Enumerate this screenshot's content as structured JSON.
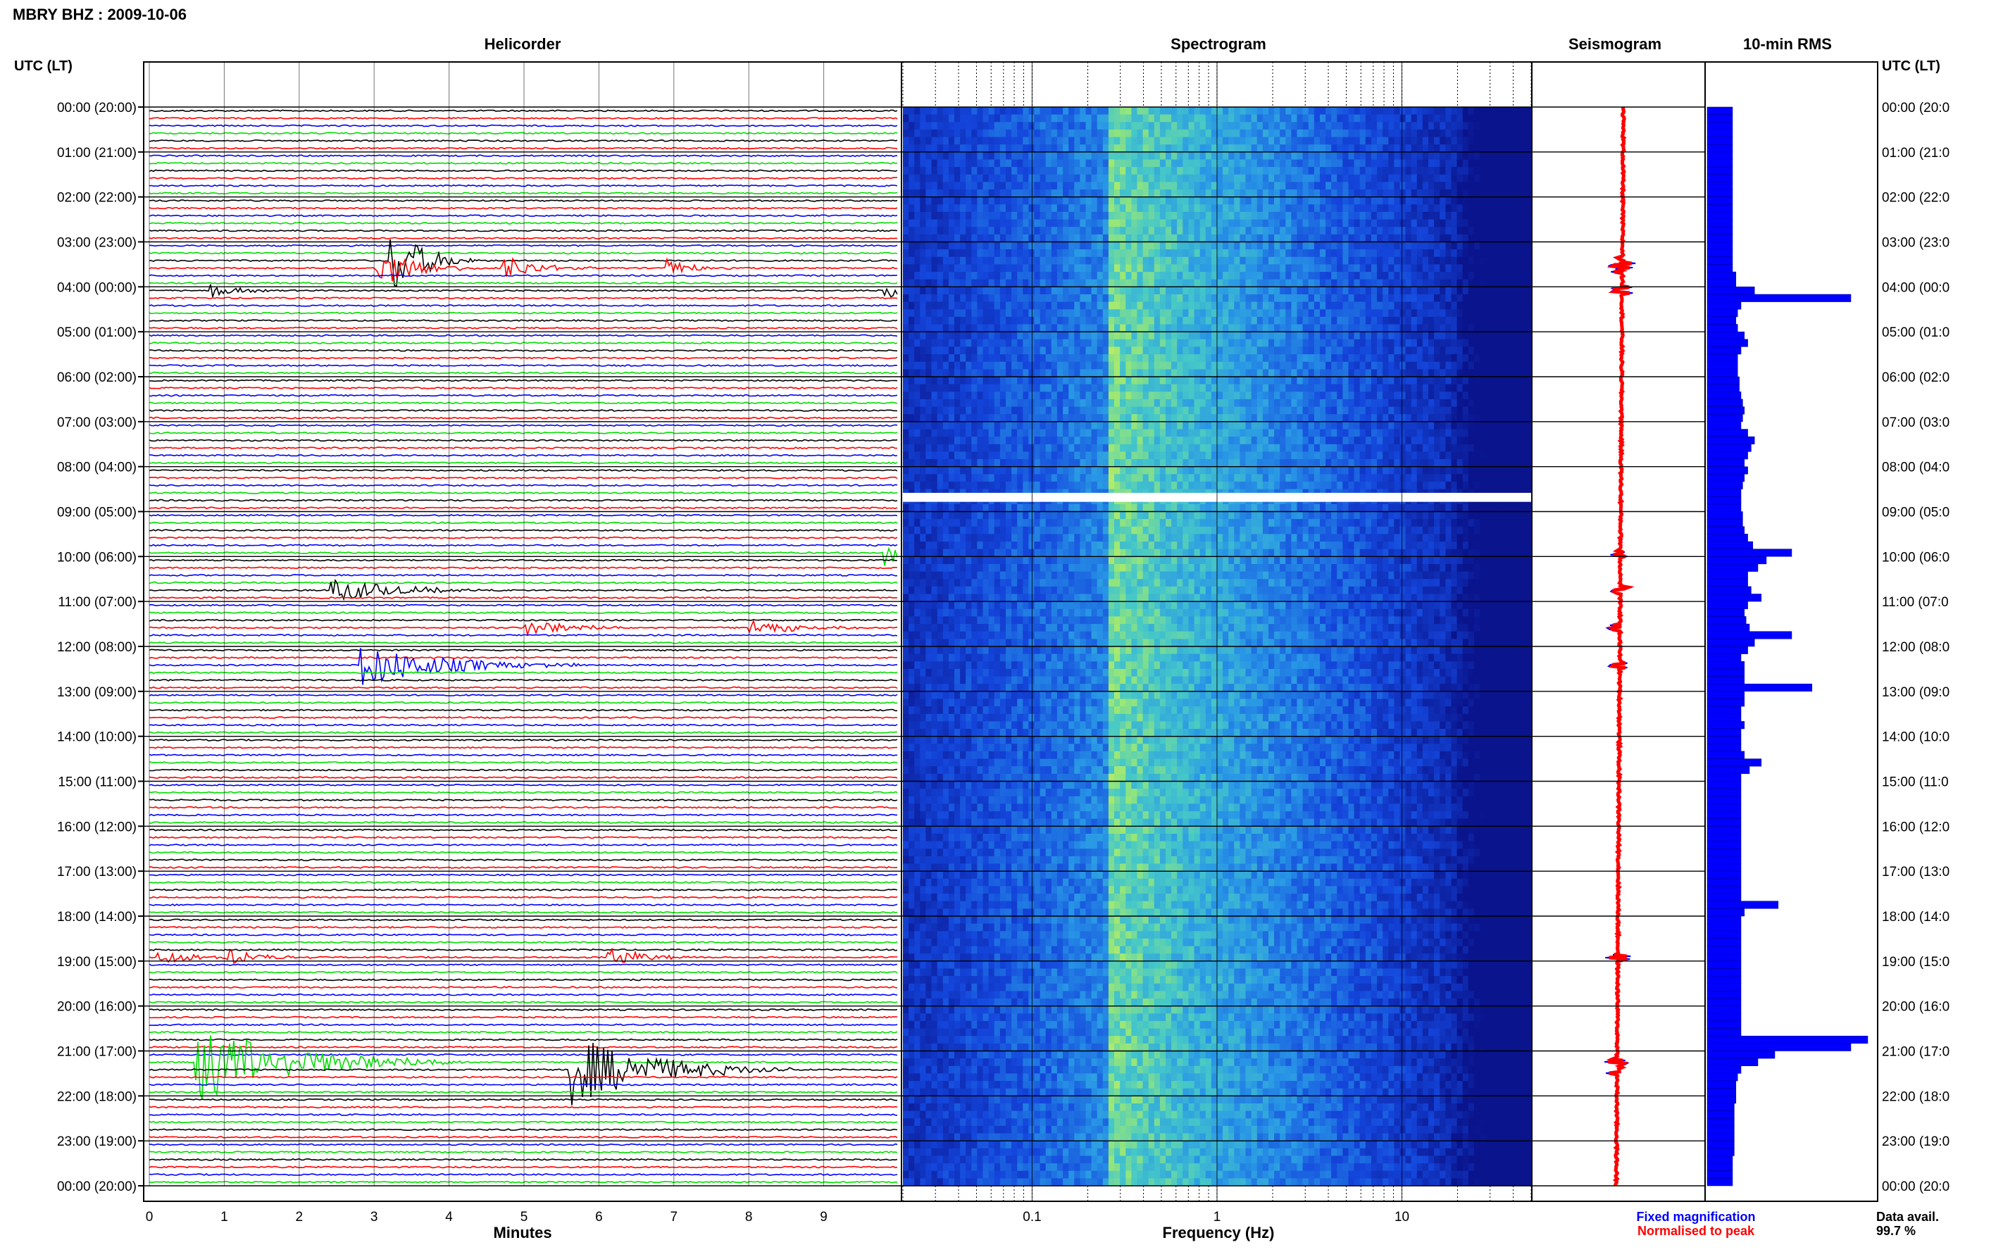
{
  "header": {
    "title": "MBRY BHZ : 2009-10-06"
  },
  "panels": {
    "helicorder": "Helicorder",
    "spectrogram": "Spectrogram",
    "seismogram": "Seismogram",
    "rms": "10-min RMS"
  },
  "axes": {
    "left_label": "UTC (LT)",
    "right_label": "UTC (LT)",
    "x_label_minutes": "Minutes",
    "x_label_frequency": "Frequency (Hz)",
    "minute_ticks": [
      "0",
      "1",
      "2",
      "3",
      "4",
      "5",
      "6",
      "7",
      "8",
      "9"
    ],
    "freq_ticks": [
      "0.1",
      "1",
      "10"
    ]
  },
  "time_labels": [
    "00:00 (20:00)",
    "01:00 (21:00)",
    "02:00 (22:00)",
    "03:00 (23:00)",
    "04:00 (00:00)",
    "05:00 (01:00)",
    "06:00 (02:00)",
    "07:00 (03:00)",
    "08:00 (04:00)",
    "09:00 (05:00)",
    "10:00 (06:00)",
    "11:00 (07:00)",
    "12:00 (08:00)",
    "13:00 (09:00)",
    "14:00 (10:00)",
    "15:00 (11:00)",
    "16:00 (12:00)",
    "17:00 (13:00)",
    "18:00 (14:00)",
    "19:00 (15:00)",
    "20:00 (16:00)",
    "21:00 (17:00)",
    "22:00 (18:00)",
    "23:00 (19:00)",
    "00:00 (20:00)"
  ],
  "time_labels_right": [
    "00:00 (20:0",
    "01:00 (21:0",
    "02:00 (22:0",
    "03:00 (23:0",
    "04:00 (00:0",
    "05:00 (01:0",
    "06:00 (02:0",
    "07:00 (03:0",
    "08:00 (04:0",
    "09:00 (05:0",
    "10:00 (06:0",
    "11:00 (07:0",
    "12:00 (08:0",
    "13:00 (09:0",
    "14:00 (10:0",
    "15:00 (11:0",
    "16:00 (12:0",
    "17:00 (13:0",
    "18:00 (14:0",
    "19:00 (15:0",
    "20:00 (16:0",
    "21:00 (17:0",
    "22:00 (18:0",
    "23:00 (19:0",
    "00:00 (20:0"
  ],
  "legend": {
    "fixed": "Fixed magnification",
    "normalised": "Normalised to peak",
    "avail_label": "Data avail.",
    "avail_value": "99.7 %"
  },
  "colors": {
    "trace_cycle": [
      "#000000",
      "#ff0000",
      "#0000ff",
      "#00dd00"
    ],
    "rms_bar": "#0000ff",
    "fixed": "#0000ff",
    "normalised": "#ff0000"
  },
  "chart_data": {
    "type": "heatmap",
    "helicorder": {
      "x_unit": "Minutes",
      "xlim": [
        0,
        10
      ],
      "rows_per_hour": 6,
      "hours": 24,
      "events": [
        {
          "row": 20,
          "minute": 3.2,
          "amp": 1.0,
          "dur": 0.4
        },
        {
          "row": 21,
          "minute": 3.0,
          "amp": 0.5,
          "dur": 0.5
        },
        {
          "row": 21,
          "minute": 4.7,
          "amp": 0.35,
          "dur": 0.4
        },
        {
          "row": 21,
          "minute": 6.9,
          "amp": 0.25,
          "dur": 0.3
        },
        {
          "row": 24,
          "minute": 0.8,
          "amp": 0.2,
          "dur": 0.3
        },
        {
          "row": 24,
          "minute": 9.8,
          "amp": 0.2,
          "dur": 0.4
        },
        {
          "row": 59,
          "minute": 9.8,
          "amp": 0.4,
          "dur": 0.3
        },
        {
          "row": 64,
          "minute": 2.4,
          "amp": 0.3,
          "dur": 0.8
        },
        {
          "row": 69,
          "minute": 5.0,
          "amp": 0.2,
          "dur": 0.6
        },
        {
          "row": 69,
          "minute": 8.0,
          "amp": 0.2,
          "dur": 0.6
        },
        {
          "row": 74,
          "minute": 2.8,
          "amp": 0.55,
          "dur": 1.0
        },
        {
          "row": 113,
          "minute": 0.1,
          "amp": 0.25,
          "dur": 0.4
        },
        {
          "row": 113,
          "minute": 1.0,
          "amp": 0.25,
          "dur": 0.4
        },
        {
          "row": 113,
          "minute": 6.1,
          "amp": 0.3,
          "dur": 0.4
        },
        {
          "row": 127,
          "minute": 0.6,
          "amp": 1.0,
          "dur": 1.2
        },
        {
          "row": 128,
          "minute": 5.6,
          "amp": 0.9,
          "dur": 1.0
        }
      ]
    },
    "spectrogram": {
      "x_unit": "Frequency (Hz)",
      "xlim": [
        0.02,
        50
      ],
      "log_x": true,
      "peak_frequency_hz": 0.25
    },
    "rms": {
      "unit": "relative",
      "values": [
        0.15,
        0.15,
        0.15,
        0.15,
        0.15,
        0.15,
        0.15,
        0.15,
        0.15,
        0.15,
        0.15,
        0.15,
        0.15,
        0.15,
        0.15,
        0.15,
        0.15,
        0.15,
        0.15,
        0.15,
        0.15,
        0.15,
        0.17,
        0.17,
        0.28,
        0.85,
        0.2,
        0.18,
        0.17,
        0.18,
        0.22,
        0.24,
        0.2,
        0.18,
        0.18,
        0.18,
        0.19,
        0.19,
        0.2,
        0.21,
        0.22,
        0.21,
        0.2,
        0.24,
        0.28,
        0.26,
        0.24,
        0.22,
        0.24,
        0.22,
        0.21,
        0.2,
        0.2,
        0.2,
        0.21,
        0.21,
        0.22,
        0.24,
        0.27,
        0.5,
        0.35,
        0.3,
        0.24,
        0.24,
        0.26,
        0.32,
        0.24,
        0.22,
        0.23,
        0.25,
        0.5,
        0.28,
        0.24,
        0.2,
        0.22,
        0.22,
        0.22,
        0.62,
        0.22,
        0.22,
        0.2,
        0.2,
        0.22,
        0.2,
        0.2,
        0.2,
        0.22,
        0.32,
        0.25,
        0.2,
        0.2,
        0.2,
        0.2,
        0.2,
        0.2,
        0.2,
        0.2,
        0.2,
        0.2,
        0.2,
        0.2,
        0.2,
        0.2,
        0.2,
        0.2,
        0.2,
        0.42,
        0.22,
        0.2,
        0.2,
        0.2,
        0.2,
        0.2,
        0.2,
        0.2,
        0.2,
        0.2,
        0.2,
        0.2,
        0.2,
        0.2,
        0.2,
        0.2,
        0.2,
        0.95,
        0.85,
        0.4,
        0.3,
        0.2,
        0.18,
        0.17,
        0.17,
        0.17,
        0.16,
        0.16,
        0.16,
        0.16,
        0.16,
        0.16,
        0.16,
        0.15,
        0.15,
        0.15,
        0.15
      ]
    }
  }
}
